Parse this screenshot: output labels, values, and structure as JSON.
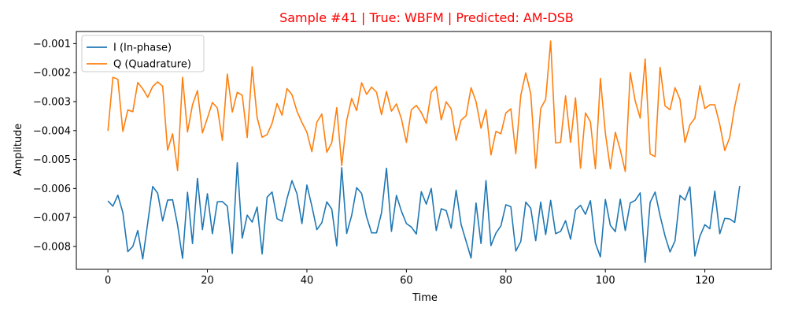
{
  "chart_data": {
    "type": "line",
    "title": "Sample #41 | True: WBFM | Predicted: AM-DSB",
    "title_color": "#ff0000",
    "xlabel": "Time",
    "ylabel": "Amplitude",
    "xlim": [
      -6.35,
      133.35
    ],
    "ylim": [
      -0.00879,
      -0.00058
    ],
    "xticks": [
      0,
      20,
      40,
      60,
      80,
      100,
      120
    ],
    "xtick_labels": [
      "0",
      "20",
      "40",
      "60",
      "80",
      "100",
      "120"
    ],
    "yticks": [
      -0.008,
      -0.007,
      -0.006,
      -0.005,
      -0.004,
      -0.003,
      -0.002,
      -0.001
    ],
    "ytick_labels": [
      "−0.008",
      "−0.007",
      "−0.006",
      "−0.005",
      "−0.004",
      "−0.003",
      "−0.002",
      "−0.001"
    ],
    "grid": false,
    "legend": "top-left",
    "series": [
      {
        "name": "I (In-phase)",
        "color": "#1f77b4",
        "values": [
          -0.00643,
          -0.00661,
          -0.00623,
          -0.00683,
          -0.00818,
          -0.008,
          -0.00745,
          -0.00843,
          -0.00719,
          -0.00593,
          -0.00616,
          -0.00712,
          -0.0064,
          -0.00639,
          -0.00726,
          -0.00841,
          -0.00613,
          -0.0079,
          -0.00565,
          -0.00742,
          -0.00618,
          -0.00756,
          -0.00646,
          -0.00645,
          -0.00661,
          -0.00824,
          -0.00511,
          -0.00771,
          -0.00692,
          -0.00716,
          -0.00664,
          -0.00826,
          -0.0063,
          -0.00612,
          -0.00704,
          -0.00713,
          -0.00635,
          -0.00573,
          -0.00618,
          -0.00721,
          -0.00588,
          -0.00661,
          -0.00742,
          -0.00718,
          -0.00646,
          -0.00671,
          -0.00798,
          -0.00528,
          -0.00755,
          -0.00693,
          -0.00597,
          -0.00617,
          -0.00698,
          -0.00753,
          -0.00753,
          -0.00684,
          -0.0053,
          -0.00748,
          -0.00624,
          -0.00678,
          -0.00721,
          -0.00733,
          -0.00757,
          -0.00611,
          -0.00654,
          -0.006,
          -0.00745,
          -0.0067,
          -0.00676,
          -0.00737,
          -0.00606,
          -0.00724,
          -0.00782,
          -0.0084,
          -0.0065,
          -0.0079,
          -0.00573,
          -0.00797,
          -0.00754,
          -0.00729,
          -0.00656,
          -0.00663,
          -0.00816,
          -0.00783,
          -0.00647,
          -0.00668,
          -0.0078,
          -0.00647,
          -0.00759,
          -0.00641,
          -0.00756,
          -0.00748,
          -0.00711,
          -0.00775,
          -0.00674,
          -0.00658,
          -0.00689,
          -0.00642,
          -0.00789,
          -0.00836,
          -0.00638,
          -0.00727,
          -0.00749,
          -0.00637,
          -0.00745,
          -0.0065,
          -0.00641,
          -0.00615,
          -0.00855,
          -0.00648,
          -0.00612,
          -0.00694,
          -0.00764,
          -0.00819,
          -0.00781,
          -0.00624,
          -0.0064,
          -0.00594,
          -0.00833,
          -0.00765,
          -0.00725,
          -0.00739,
          -0.00609,
          -0.00756,
          -0.00703,
          -0.00705,
          -0.00717,
          -0.00591
        ]
      },
      {
        "name": "Q (Quadrature)",
        "color": "#ff7f0e",
        "values": [
          -0.00401,
          -0.00216,
          -0.00223,
          -0.00403,
          -0.00329,
          -0.00335,
          -0.00234,
          -0.00256,
          -0.00285,
          -0.00248,
          -0.00232,
          -0.00247,
          -0.00468,
          -0.00411,
          -0.00538,
          -0.00216,
          -0.00405,
          -0.00311,
          -0.00262,
          -0.00408,
          -0.00357,
          -0.00303,
          -0.00322,
          -0.00434,
          -0.00205,
          -0.00336,
          -0.00268,
          -0.00278,
          -0.00424,
          -0.0018,
          -0.00355,
          -0.00423,
          -0.00414,
          -0.00375,
          -0.00307,
          -0.00347,
          -0.00255,
          -0.00276,
          -0.00333,
          -0.00372,
          -0.00406,
          -0.00473,
          -0.00371,
          -0.00343,
          -0.00475,
          -0.00442,
          -0.00321,
          -0.00521,
          -0.00365,
          -0.00289,
          -0.00331,
          -0.00235,
          -0.00275,
          -0.0025,
          -0.00268,
          -0.00345,
          -0.00265,
          -0.00333,
          -0.00308,
          -0.00359,
          -0.00441,
          -0.00328,
          -0.00313,
          -0.00338,
          -0.00375,
          -0.00267,
          -0.00248,
          -0.00363,
          -0.00301,
          -0.00325,
          -0.00434,
          -0.00364,
          -0.00349,
          -0.00252,
          -0.003,
          -0.00392,
          -0.00328,
          -0.00484,
          -0.00403,
          -0.00411,
          -0.00339,
          -0.00325,
          -0.0048,
          -0.00278,
          -0.00201,
          -0.00273,
          -0.0053,
          -0.00324,
          -0.00292,
          -0.00091,
          -0.00443,
          -0.00441,
          -0.0028,
          -0.00441,
          -0.00287,
          -0.0053,
          -0.00339,
          -0.0037,
          -0.00532,
          -0.0022,
          -0.00409,
          -0.00532,
          -0.00406,
          -0.00467,
          -0.00541,
          -0.002,
          -0.00298,
          -0.00357,
          -0.00153,
          -0.00481,
          -0.0049,
          -0.00182,
          -0.00315,
          -0.00328,
          -0.00252,
          -0.00292,
          -0.00441,
          -0.0038,
          -0.00357,
          -0.00245,
          -0.00324,
          -0.00311,
          -0.00311,
          -0.00379,
          -0.00469,
          -0.00424,
          -0.00318,
          -0.00237
        ]
      }
    ]
  }
}
